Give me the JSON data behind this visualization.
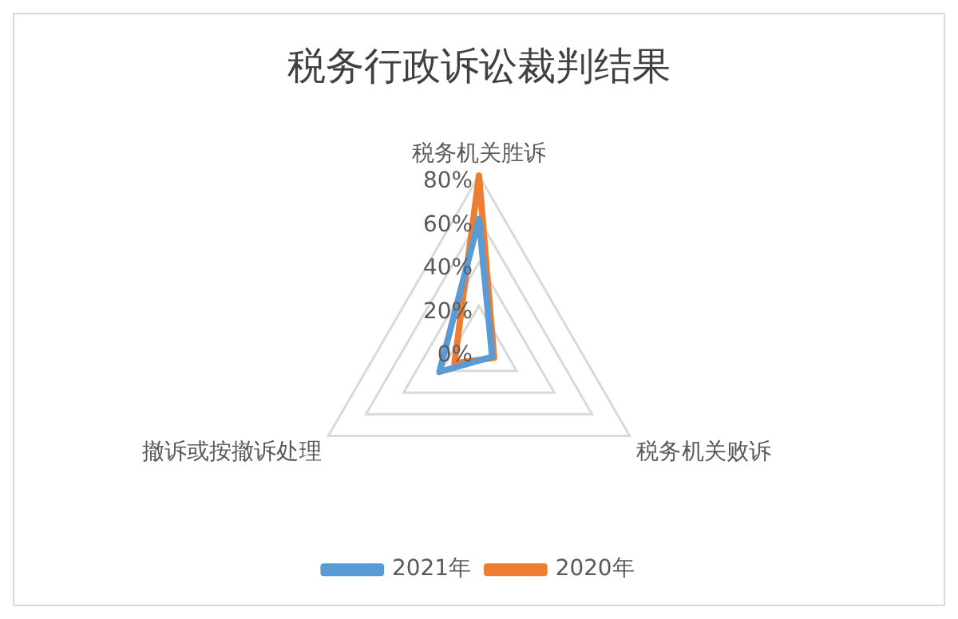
{
  "chart_data": {
    "type": "radar",
    "title": "税务行政诉讼裁判结果",
    "categories": [
      "税务机关胜诉",
      "税务机关败诉",
      "撤诉或按撤诉处理"
    ],
    "series": [
      {
        "name": "2021年",
        "color": "#5b9bd5",
        "values": [
          60,
          7,
          21
        ]
      },
      {
        "name": "2020年",
        "color": "#ed7d31",
        "values": [
          80,
          8,
          13
        ]
      }
    ],
    "ylim": [
      0,
      80
    ],
    "yticks": [
      {
        "value": 0,
        "label": "0%"
      },
      {
        "value": 20,
        "label": "20%"
      },
      {
        "value": 40,
        "label": "40%"
      },
      {
        "value": 60,
        "label": "60%"
      },
      {
        "value": 80,
        "label": "80%"
      }
    ],
    "grid": true,
    "legend": "bottom"
  }
}
